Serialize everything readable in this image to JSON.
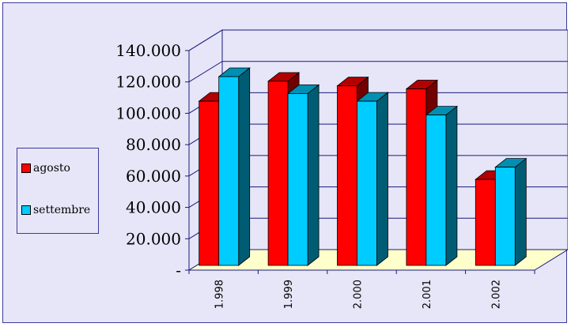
{
  "chart_data": {
    "type": "bar",
    "categories": [
      "1.998",
      "1.999",
      "2.000",
      "2.001",
      "2.002"
    ],
    "series": [
      {
        "name": "agosto",
        "color": "#ff0000",
        "values": [
          107000,
          120000,
          117000,
          115000,
          56000
        ]
      },
      {
        "name": "settembre",
        "color": "#00ccff",
        "values": [
          123000,
          112000,
          107000,
          98000,
          64000
        ]
      }
    ],
    "ylim": [
      0,
      140000
    ],
    "yticks": [
      0,
      20000,
      40000,
      60000,
      80000,
      100000,
      120000,
      140000
    ],
    "ytick_labels": [
      "-",
      "20.000",
      "40.000",
      "60.000",
      "80.000",
      "100.000",
      "120.000",
      "140.000"
    ],
    "grid": true,
    "legend_position": "left",
    "three_d": true,
    "colors": {
      "background": "#e6e6f8",
      "floor": "#ffffcc",
      "border": "#3a3a9a"
    }
  }
}
